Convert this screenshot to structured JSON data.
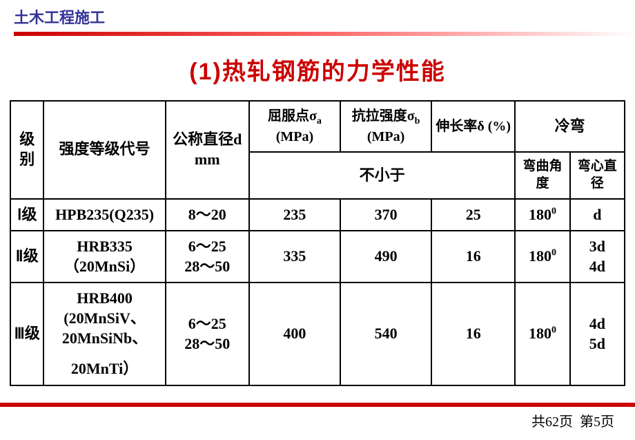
{
  "header": {
    "text": "土木工程施工"
  },
  "title": "(1)热轧钢筋的力学性能",
  "columns": {
    "level": "级别",
    "grade": "强度等级代号",
    "diameter": "公称直径d mm",
    "yield": "屈服点σₐ (MPa)",
    "tensile": "抗拉强度σb (MPa)",
    "tensile_sub_label": "b",
    "elongation": "伸长率δ (%)",
    "bend": "冷弯",
    "not_less": "不小于",
    "bend_angle": "弯曲角度",
    "bend_dia": "弯心直径"
  },
  "rows": [
    {
      "level": "Ⅰ级",
      "grade": "HPB235(Q235)",
      "diameter": "8～20",
      "yield": "235",
      "tensile": "370",
      "elongation": "25",
      "bend_angle": "180⁰",
      "bend_dia": "d"
    },
    {
      "level": "Ⅱ级",
      "grade": "HRB335（20MnSi）",
      "diameter": "6～25\n28～50",
      "yield": "335",
      "tensile": "490",
      "elongation": "16",
      "bend_angle": "180⁰",
      "bend_dia": "3d\n4d"
    },
    {
      "level": "Ⅲ级",
      "grade": "HRB400 (20MnSiV、20MnSiNb、",
      "grade_overflow": "20MnTi）",
      "diameter": "6～25\n28～50",
      "yield": "400",
      "tensile": "540",
      "elongation": "16",
      "bend_angle": "180⁰",
      "bend_dia": "4d\n5d"
    }
  ],
  "footer": {
    "total_pages": "共62页",
    "current_page": "第5页"
  },
  "style": {
    "title_color": "#cc0000",
    "header_color": "#333399",
    "border_color": "#000000",
    "bg_color": "#ffffff"
  }
}
